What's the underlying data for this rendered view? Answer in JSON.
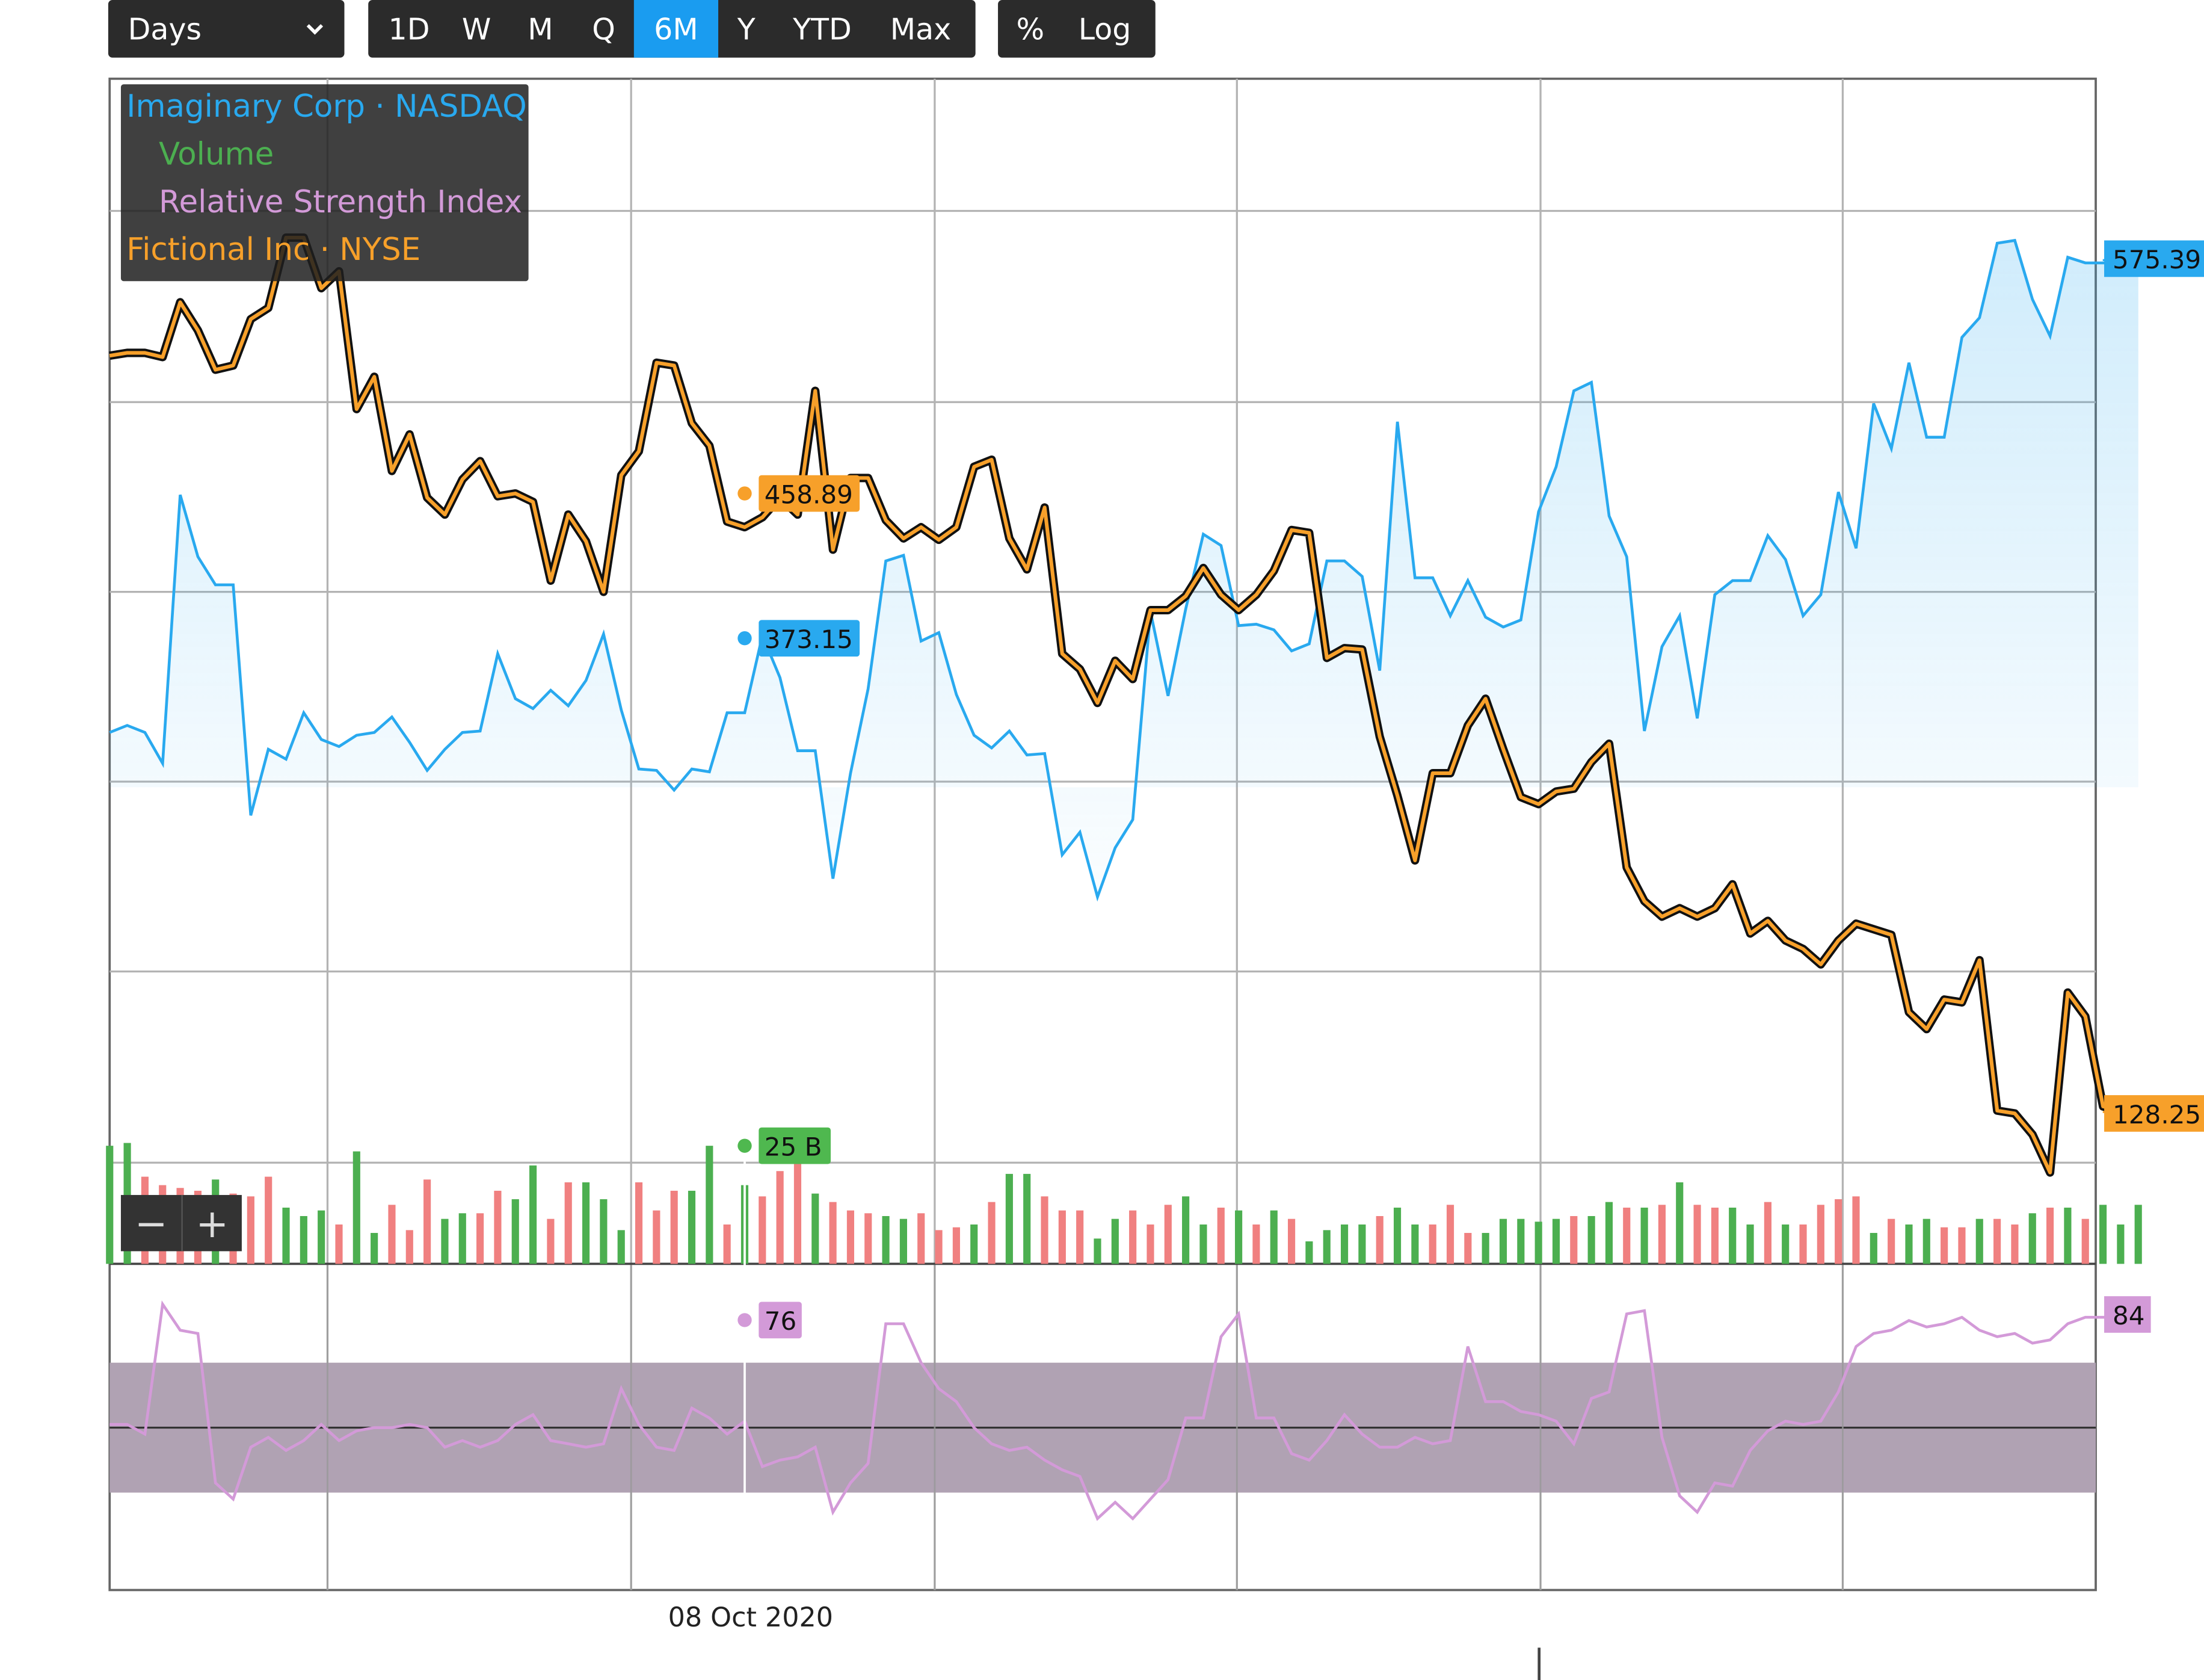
{
  "toolbar": {
    "period_select": "Days",
    "periods": [
      "1D",
      "W",
      "M",
      "Q",
      "6M",
      "Y",
      "YTD",
      "Max"
    ],
    "active_period": "6M",
    "modes": [
      "%",
      "Log"
    ]
  },
  "legend": {
    "main_series": "Imaginary Corp · NASDAQ",
    "volume": "Volume",
    "rsi": "Relative Strength Index",
    "compare_series": "Fictional Inc · NYSE"
  },
  "zoom": {
    "out": "−",
    "in": "+"
  },
  "crosshair": {
    "date_label": "08 Oct 2020",
    "fictional_value": "458.89",
    "imaginary_value": "373.15",
    "volume_value": "25 B",
    "rsi_value": "76"
  },
  "last_values": {
    "imaginary": "575.39",
    "fictional": "128.25",
    "rsi": "84"
  },
  "colors": {
    "imaginary": "#29a9ef",
    "fictional": "#f7a02a",
    "volume_up": "#4caf50",
    "volume_down": "#f08080",
    "rsi": "#d39ad8",
    "rsi_band": "#b0a2b3",
    "toolbar_bg": "#2b2b2b",
    "active": "#1a9cf0"
  },
  "chart_data": [
    {
      "type": "line",
      "name": "Imaginary Corp · NASDAQ",
      "x": [
        1,
        2,
        3,
        4,
        5,
        6,
        7,
        8,
        9,
        10,
        11,
        12,
        13,
        14,
        15,
        16,
        17,
        18,
        19,
        20,
        21,
        22,
        23,
        24,
        25,
        26,
        27,
        28,
        29,
        30,
        31,
        32,
        33,
        34,
        35,
        36,
        37,
        38,
        39,
        40,
        41,
        42,
        43,
        44,
        45,
        46,
        47,
        48,
        49,
        50,
        51,
        52,
        53,
        54,
        55,
        56,
        57,
        58,
        59,
        60,
        61,
        62,
        63,
        64,
        65,
        66,
        67,
        68,
        69,
        70,
        71,
        72,
        73,
        74,
        75,
        76,
        77,
        78,
        79,
        80,
        81,
        82,
        83,
        84,
        85,
        86,
        87,
        88,
        89,
        90,
        91,
        92,
        93,
        94,
        95,
        96,
        97,
        98,
        99,
        100,
        101,
        102,
        103,
        104,
        105,
        106,
        107,
        108,
        109,
        110,
        111,
        112,
        113,
        114,
        115,
        116
      ],
      "y": [
        521,
        516,
        521,
        543,
        352,
        396,
        416,
        416,
        580,
        533,
        540,
        507,
        526,
        531,
        523,
        521,
        510,
        528,
        548,
        533,
        521,
        520,
        465,
        497,
        504,
        491,
        502,
        484,
        451,
        505,
        547,
        548,
        562,
        547,
        549,
        507,
        507,
        452,
        482,
        534,
        534,
        625,
        550,
        490,
        399,
        395,
        456,
        450,
        494,
        523,
        532,
        520,
        537,
        536,
        608,
        592,
        638,
        603,
        583,
        435,
        495,
        433,
        380,
        388,
        445,
        444,
        448,
        463,
        458,
        399,
        399,
        410,
        477,
        300,
        411,
        411,
        438,
        413,
        439,
        446,
        441,
        364,
        332,
        278,
        272,
        367,
        396,
        520,
        460,
        438,
        511,
        423,
        413,
        413,
        381,
        398,
        438,
        423,
        350,
        390,
        287,
        319,
        258,
        311,
        311,
        240,
        226,
        173,
        171,
        213,
        239,
        183,
        187,
        187,
        187,
        185
      ],
      "last_label": "575.39",
      "crosshair_value": "373.15"
    },
    {
      "type": "line",
      "name": "Fictional Inc · NYSE",
      "x": [
        1,
        2,
        3,
        4,
        5,
        6,
        7,
        8,
        9,
        10,
        11,
        12,
        13,
        14,
        15,
        16,
        17,
        18,
        19,
        20,
        21,
        22,
        23,
        24,
        25,
        26,
        27,
        28,
        29,
        30,
        31,
        32,
        33,
        34,
        35,
        36,
        37,
        38,
        39,
        40,
        41,
        42,
        43,
        44,
        45,
        46,
        47,
        48,
        49,
        50,
        51,
        52,
        53,
        54,
        55,
        56,
        57,
        58,
        59,
        60,
        61,
        62,
        63,
        64,
        65,
        66,
        67,
        68,
        69,
        70,
        71,
        72,
        73,
        74,
        75,
        76,
        77,
        78,
        79,
        80,
        81,
        82,
        83,
        84,
        85,
        86,
        87,
        88,
        89,
        90,
        91,
        92,
        93,
        94,
        95,
        96,
        97,
        98,
        99,
        100,
        101,
        102,
        103,
        104,
        105,
        106,
        107,
        108,
        109,
        110,
        111,
        112,
        113,
        114,
        115,
        116
      ],
      "y": [
        253,
        251,
        251,
        254,
        215,
        235,
        263,
        260,
        227,
        219,
        169,
        169,
        205,
        193,
        291,
        268,
        335,
        309,
        354,
        366,
        341,
        328,
        353,
        351,
        357,
        413,
        366,
        385,
        421,
        338,
        321,
        258,
        260,
        301,
        317,
        371,
        375,
        368,
        354,
        366,
        278,
        391,
        340,
        340,
        370,
        383,
        375,
        384,
        375,
        332,
        327,
        383,
        405,
        361,
        465,
        476,
        500,
        470,
        483,
        434,
        434,
        424,
        404,
        423,
        434,
        423,
        406,
        377,
        379,
        468,
        461,
        462,
        524,
        566,
        612,
        550,
        550,
        516,
        497,
        533,
        567,
        572,
        563,
        561,
        542,
        529,
        617,
        641,
        652,
        646,
        652,
        646,
        629,
        664,
        655,
        669,
        675,
        686,
        669,
        657,
        661,
        665,
        720,
        732,
        711,
        713,
        683,
        790,
        792,
        807,
        834,
        706,
        723,
        787,
        790,
        791
      ],
      "last_label": "128.25",
      "crosshair_value": "458.89"
    },
    {
      "type": "bar",
      "name": "Volume",
      "values": [
        42,
        43,
        31,
        28,
        27,
        26,
        30,
        25,
        24,
        31,
        20,
        17,
        19,
        14,
        40,
        11,
        21,
        12,
        30,
        16,
        18,
        18,
        26,
        23,
        35,
        16,
        29,
        29,
        23,
        12,
        29,
        19,
        26,
        26,
        42,
        14,
        28,
        24,
        33,
        42,
        25,
        22,
        19,
        18,
        17,
        16,
        18,
        12,
        13,
        14,
        22,
        32,
        32,
        24,
        19,
        19,
        9,
        16,
        19,
        14,
        21,
        24,
        14,
        20,
        19,
        14,
        19,
        16,
        8,
        12,
        14,
        14,
        17,
        20,
        14,
        14,
        21,
        11,
        11,
        16,
        16,
        15,
        16,
        17,
        17,
        22,
        20,
        20,
        21,
        29,
        21,
        20,
        20,
        14,
        22,
        14,
        14,
        21,
        23,
        24,
        11,
        16,
        14,
        16,
        13,
        13,
        16,
        16,
        14,
        18,
        20,
        20,
        16,
        21,
        14,
        21
      ],
      "up": [
        1,
        1,
        0,
        0,
        0,
        0,
        1,
        0,
        0,
        0,
        1,
        1,
        1,
        0,
        1,
        1,
        0,
        0,
        0,
        1,
        1,
        0,
        0,
        1,
        1,
        0,
        0,
        1,
        1,
        1,
        0,
        0,
        0,
        1,
        1,
        0,
        1,
        0,
        0,
        0,
        1,
        0,
        0,
        0,
        1,
        1,
        0,
        0,
        0,
        1,
        0,
        1,
        1,
        0,
        0,
        0,
        1,
        1,
        0,
        0,
        0,
        1,
        1,
        0,
        1,
        0,
        1,
        0,
        1,
        1,
        1,
        1,
        0,
        1,
        1,
        0,
        0,
        0,
        1,
        1,
        1,
        1,
        1,
        0,
        1,
        1,
        0,
        1,
        0,
        1,
        0,
        0,
        1,
        1,
        0,
        1,
        0,
        0,
        0,
        0,
        1,
        0,
        1,
        1,
        0,
        0,
        1,
        0,
        0,
        1,
        0,
        1,
        0,
        1,
        1,
        1
      ],
      "crosshair_value": "25 B"
    },
    {
      "type": "line",
      "name": "Relative Strength Index",
      "x": [
        1,
        2,
        3,
        4,
        5,
        6,
        7,
        8,
        9,
        10,
        11,
        12,
        13,
        14,
        15,
        16,
        17,
        18,
        19,
        20,
        21,
        22,
        23,
        24,
        25,
        26,
        27,
        28,
        29,
        30,
        31,
        32,
        33,
        34,
        35,
        36,
        37,
        38,
        39,
        40,
        41,
        42,
        43,
        44,
        45,
        46,
        47,
        48,
        49,
        50,
        51,
        52,
        53,
        54,
        55,
        56,
        57,
        58,
        59,
        60,
        61,
        62,
        63,
        64,
        65,
        66,
        67,
        68,
        69,
        70,
        71,
        72,
        73,
        74,
        75,
        76,
        77,
        78,
        79,
        80,
        81,
        82,
        83,
        84,
        85,
        86,
        87,
        88,
        89,
        90,
        91,
        92,
        93,
        94,
        95,
        96,
        97,
        98,
        99,
        100,
        101,
        102,
        103,
        104,
        105,
        106,
        107,
        108,
        109,
        110,
        111,
        112,
        113,
        114,
        115,
        116
      ],
      "y": [
        51,
        51,
        48,
        88,
        80,
        79,
        33,
        28,
        44,
        47,
        43,
        46,
        51,
        46,
        49,
        50,
        50,
        51,
        50,
        44,
        46,
        44,
        46,
        51,
        54,
        46,
        45,
        44,
        45,
        62,
        51,
        44,
        43,
        56,
        53,
        48,
        52,
        38,
        40,
        41,
        44,
        24,
        33,
        39,
        82,
        82,
        70,
        62,
        58,
        50,
        45,
        43,
        44,
        40,
        37,
        35,
        22,
        27,
        22,
        28,
        34,
        53,
        53,
        78,
        85,
        53,
        53,
        42,
        40,
        46,
        54,
        48,
        44,
        44,
        47,
        45,
        46,
        75,
        58,
        58,
        55,
        54,
        52,
        45,
        59,
        61,
        85,
        86,
        47,
        29,
        24,
        33,
        32,
        43,
        49,
        52,
        51,
        52,
        61,
        75,
        79,
        80,
        83,
        81,
        82,
        84,
        80,
        78,
        79,
        76,
        77,
        82,
        84,
        84,
        84,
        84
      ],
      "band": [
        30,
        70
      ],
      "ylim": [
        0,
        100
      ],
      "last_label": "84",
      "crosshair_value": "76"
    }
  ]
}
